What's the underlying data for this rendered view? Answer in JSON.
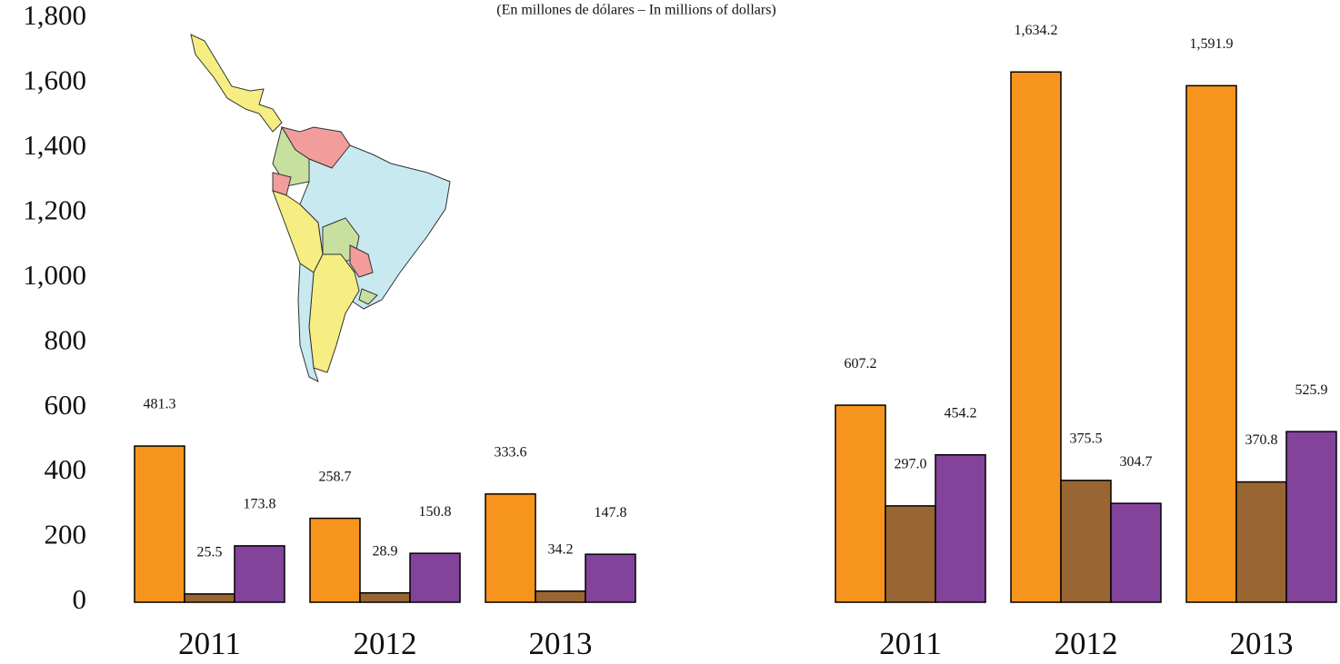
{
  "chart_data": [
    {
      "type": "bar",
      "subtitle": "(En millones de dólares – In millions of dollars)",
      "categories": [
        "2011",
        "2012",
        "2013"
      ],
      "series": [
        {
          "color": "#f7941d",
          "values": [
            481.3,
            258.7,
            333.6
          ],
          "value_labels": [
            "481.3",
            "258.7",
            "333.6"
          ]
        },
        {
          "color": "#996633",
          "values": [
            25.5,
            28.9,
            34.2
          ],
          "value_labels": [
            "25.5",
            "28.9",
            "34.2"
          ]
        },
        {
          "color": "#83439a",
          "values": [
            173.8,
            150.8,
            147.8
          ],
          "value_labels": [
            "173.8",
            "150.8",
            "147.8"
          ]
        }
      ],
      "ylim": [
        0,
        1800
      ],
      "yticks": [
        0,
        200,
        400,
        600,
        800,
        {
          "value": 1000,
          "label": "1,000"
        },
        {
          "value": 1200,
          "label": "1,200"
        },
        {
          "value": 1400,
          "label": "1,400"
        },
        {
          "value": 1600,
          "label": "1,600"
        },
        {
          "value": 1800,
          "label": "1,800"
        }
      ]
    },
    {
      "type": "bar",
      "categories": [
        "2011",
        "2012",
        "2013"
      ],
      "series": [
        {
          "color": "#f7941d",
          "values": [
            607.2,
            1634.2,
            1591.9
          ],
          "value_labels": [
            "607.2",
            "1,634.2",
            "1,591.9"
          ]
        },
        {
          "color": "#996633",
          "values": [
            297.0,
            375.5,
            370.8
          ],
          "value_labels": [
            "297.0",
            "375.5",
            "370.8"
          ]
        },
        {
          "color": "#83439a",
          "values": [
            454.2,
            304.7,
            525.9
          ],
          "value_labels": [
            "454.2",
            "304.7",
            "525.9"
          ]
        }
      ],
      "ylim": [
        0,
        1800
      ]
    }
  ]
}
